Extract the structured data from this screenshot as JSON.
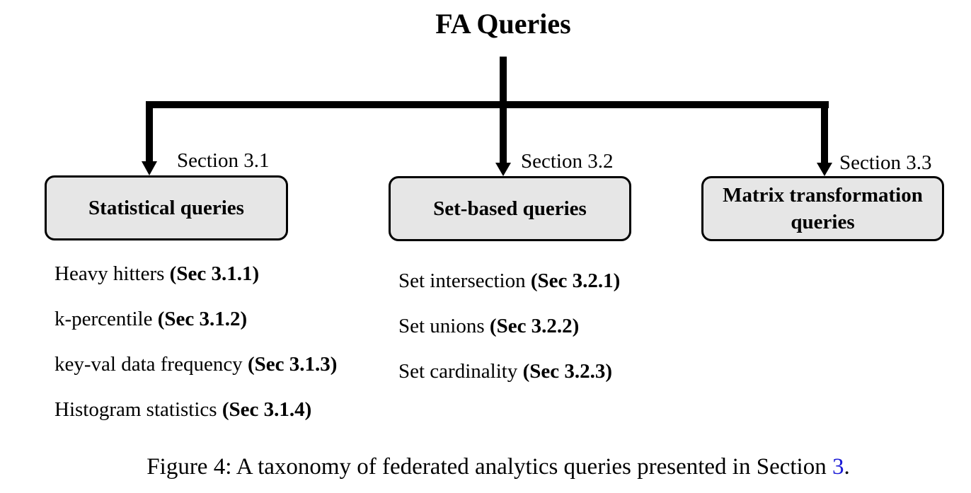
{
  "title": "FA Queries",
  "branches": [
    {
      "section_label": "Section 3.1",
      "box_label": "Statistical queries",
      "items": [
        {
          "text": "Heavy hitters ",
          "ref": "(Sec 3.1.1)"
        },
        {
          "text": "k-percentile ",
          "ref": "(Sec 3.1.2)"
        },
        {
          "text": "key-val data frequency ",
          "ref": "(Sec 3.1.3)"
        },
        {
          "text": "Histogram statistics ",
          "ref": "(Sec 3.1.4)"
        }
      ]
    },
    {
      "section_label": "Section 3.2",
      "box_label": "Set-based queries",
      "items": [
        {
          "text": "Set intersection ",
          "ref": "(Sec 3.2.1)"
        },
        {
          "text": "Set unions ",
          "ref": "(Sec 3.2.2)"
        },
        {
          "text": "Set cardinality ",
          "ref": "(Sec 3.2.3)"
        }
      ]
    },
    {
      "section_label": "Section 3.3",
      "box_label": "Matrix transformation queries",
      "items": []
    }
  ],
  "caption": {
    "text": "Figure 4:  A taxonomy of federated analytics queries presented in Section ",
    "link": "3",
    "end": "."
  },
  "colors": {
    "box_fill": "#e6e6e6",
    "line": "#000000",
    "link": "#1a1ad6"
  }
}
